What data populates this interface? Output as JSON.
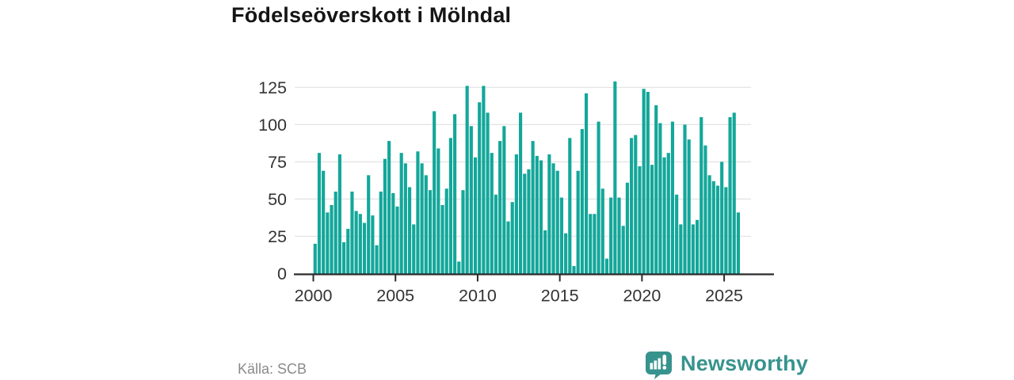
{
  "title": "Födelseöverskott i Mölndal",
  "source": "Källa: SCB",
  "brand": {
    "name": "Newsworthy",
    "color": "#37938D"
  },
  "chart_data": {
    "type": "bar",
    "title": "Födelseöverskott i Mölndal",
    "period": "quarterly",
    "x_start_year": 2000,
    "x_end_year": 2025,
    "bar_color": "#13A79A",
    "grid": true,
    "grid_color": "#e4e4e4",
    "axis_color": "#2b2b2b",
    "tick_label_color": "#333333",
    "ylim": [
      0,
      130
    ],
    "yticks": [
      0,
      25,
      50,
      75,
      100,
      125
    ],
    "xticks": [
      2000,
      2005,
      2010,
      2015,
      2020,
      2025
    ],
    "values": [
      20,
      81,
      69,
      41,
      46,
      55,
      80,
      21,
      30,
      55,
      42,
      40,
      34,
      66,
      39,
      19,
      55,
      77,
      89,
      54,
      45,
      81,
      74,
      58,
      33,
      82,
      74,
      66,
      56,
      109,
      84,
      46,
      57,
      91,
      107,
      8,
      56,
      126,
      99,
      78,
      115,
      126,
      108,
      81,
      53,
      89,
      99,
      35,
      48,
      80,
      108,
      67,
      70,
      89,
      79,
      76,
      29,
      80,
      74,
      69,
      51,
      27,
      91,
      5,
      69,
      97,
      121,
      40,
      40,
      102,
      57,
      10,
      51,
      129,
      51,
      32,
      61,
      91,
      93,
      72,
      124,
      122,
      73,
      113,
      101,
      78,
      81,
      102,
      53,
      33,
      100,
      90,
      33,
      36,
      105,
      86,
      66,
      62,
      59,
      75,
      58,
      105,
      108,
      41
    ]
  }
}
